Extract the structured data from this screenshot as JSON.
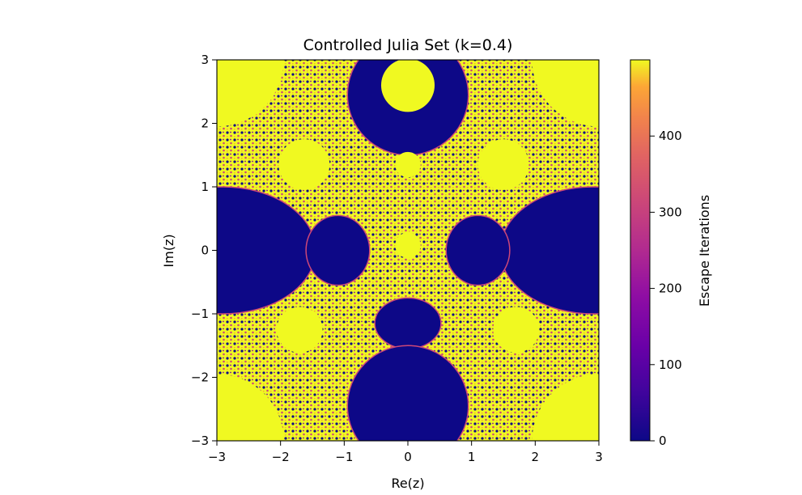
{
  "chart_data": {
    "type": "heatmap",
    "title": "Controlled Julia Set (k=0.4)",
    "xlabel": "Re(z)",
    "ylabel": "Im(z)",
    "xlim": [
      -3,
      3
    ],
    "ylim": [
      -3,
      3
    ],
    "x_ticks": [
      -3,
      -2,
      -1,
      0,
      1,
      2,
      3
    ],
    "y_ticks": [
      -3,
      -2,
      -1,
      0,
      1,
      2,
      3
    ],
    "x_tick_labels": [
      "−3",
      "−2",
      "−1",
      "0",
      "1",
      "2",
      "3"
    ],
    "y_tick_labels": [
      "−3",
      "−2",
      "−1",
      "0",
      "1",
      "2",
      "3"
    ],
    "colormap": "plasma",
    "colorbar": {
      "label": "Escape Iterations",
      "range": [
        0,
        500
      ],
      "ticks": [
        0,
        100,
        200,
        300,
        400
      ],
      "tick_labels": [
        "0",
        "100",
        "200",
        "300",
        "400"
      ]
    },
    "colors": {
      "low": "#0d0887",
      "mid_purple": "#7e03a8",
      "mid_pink": "#cc4778",
      "mid_orange": "#f89540",
      "high": "#f0f921"
    },
    "regions": {
      "escape_fast_disks": [
        {
          "cx": 0,
          "cy": 2.6,
          "r": 0.42
        },
        {
          "cx": 0,
          "cy": 1.35,
          "r": 0.2
        },
        {
          "cx": 0,
          "cy": 0.08,
          "r": 0.2
        },
        {
          "cx": -1.63,
          "cy": 1.35,
          "r": 0.4
        },
        {
          "cx": 1.5,
          "cy": 1.35,
          "r": 0.4
        },
        {
          "cx": -1.7,
          "cy": -1.25,
          "r": 0.36
        },
        {
          "cx": 1.7,
          "cy": -1.25,
          "r": 0.36
        },
        {
          "cx": -3,
          "cy": 3,
          "r": 1.05
        },
        {
          "cx": 3,
          "cy": 3,
          "r": 1.05
        },
        {
          "cx": -3,
          "cy": -3,
          "r": 1.05
        },
        {
          "cx": 3,
          "cy": -3,
          "r": 1.05
        }
      ],
      "bounded_ellipses": [
        {
          "cx": 0,
          "cy": 2.45,
          "rx": 0.95,
          "ry": 0.95
        },
        {
          "cx": -2.9,
          "cy": 0,
          "rx": 1.45,
          "ry": 1.0
        },
        {
          "cx": 2.9,
          "cy": 0,
          "rx": 1.45,
          "ry": 1.0
        },
        {
          "cx": -1.1,
          "cy": 0,
          "rx": 0.5,
          "ry": 0.55
        },
        {
          "cx": 1.1,
          "cy": 0,
          "rx": 0.5,
          "ry": 0.55
        },
        {
          "cx": 0,
          "cy": -1.15,
          "rx": 0.52,
          "ry": 0.4
        },
        {
          "cx": 0,
          "cy": -2.45,
          "rx": 0.95,
          "ry": 0.95
        }
      ]
    }
  }
}
